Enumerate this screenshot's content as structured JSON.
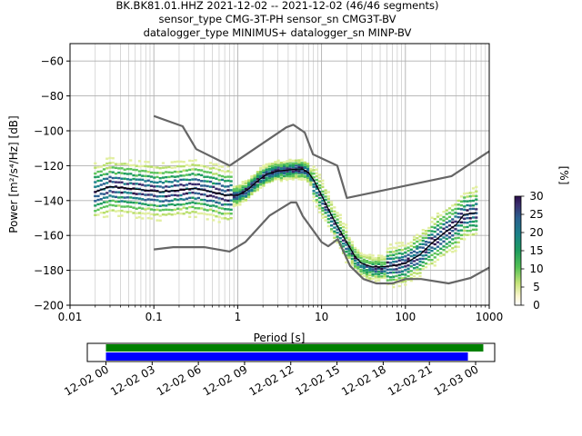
{
  "title_lines": [
    "BK.BK81.01.HHZ   2021-12-02 -- 2021-12-02  (46/46 segments)",
    "sensor_type CMG-3T-PH sensor_sn CMG3T-BV",
    "datalogger_type MINIMUS+ datalogger_sn MINP-BV"
  ],
  "colors": {
    "noise_model": "#666666",
    "mean_line": "#000000",
    "coverage_green": "#008000",
    "coverage_blue": "#0000ff",
    "grid": "#b0b0b0"
  },
  "chart_data": {
    "type": "heatmap",
    "xlabel": "Period [s]",
    "ylabel": "Power [m²/s⁴/Hz] [dB]",
    "xscale": "log",
    "xlim": [
      0.01,
      1000
    ],
    "ylim": [
      -200,
      -50
    ],
    "x_ticks": [
      {
        "value": 0.01,
        "label": "0.01"
      },
      {
        "value": 0.1,
        "label": "0.1"
      },
      {
        "value": 1,
        "label": "1"
      },
      {
        "value": 10,
        "label": "10"
      },
      {
        "value": 100,
        "label": "100"
      },
      {
        "value": 1000,
        "label": "1000"
      }
    ],
    "y_ticks": [
      {
        "value": -60,
        "label": "−60"
      },
      {
        "value": -80,
        "label": "−80"
      },
      {
        "value": -100,
        "label": "−100"
      },
      {
        "value": -120,
        "label": "−120"
      },
      {
        "value": -140,
        "label": "−140"
      },
      {
        "value": -160,
        "label": "−160"
      },
      {
        "value": -180,
        "label": "−180"
      },
      {
        "value": -200,
        "label": "−200"
      }
    ],
    "grid": true,
    "colorbar": {
      "label": "[%]",
      "range": [
        0,
        30
      ],
      "ticks": [
        {
          "value": 0,
          "label": "0"
        },
        {
          "value": 5,
          "label": "5"
        },
        {
          "value": 10,
          "label": "10"
        },
        {
          "value": 15,
          "label": "15"
        },
        {
          "value": 20,
          "label": "20"
        },
        {
          "value": 25,
          "label": "25"
        },
        {
          "value": 30,
          "label": "30"
        }
      ]
    },
    "mean_psd": {
      "period": [
        0.02,
        0.03,
        0.05,
        0.08,
        0.12,
        0.2,
        0.3,
        0.5,
        0.7,
        1.0,
        1.3,
        1.7,
        2.2,
        3.0,
        4.0,
        5.0,
        6.0,
        7.0,
        8.0,
        10.0,
        13.0,
        16.0,
        20.0,
        25.0,
        30.0,
        40.0,
        50.0,
        70.0,
        100.0,
        150.0,
        200.0,
        300.0,
        400.0,
        500.0,
        700.0
      ],
      "power": [
        -135,
        -132,
        -133,
        -134,
        -135,
        -134,
        -133,
        -135,
        -137,
        -137,
        -134,
        -129,
        -125,
        -123,
        -122.5,
        -122,
        -122,
        -124,
        -128,
        -137,
        -148,
        -156,
        -164,
        -172,
        -176,
        -178,
        -178,
        -177.5,
        -176,
        -171,
        -165,
        -158,
        -154,
        -148,
        -147
      ]
    },
    "high_noise_model": {
      "period": [
        0.1,
        0.22,
        0.32,
        0.8,
        3.8,
        4.6,
        6.3,
        7.9,
        15.4,
        20.0,
        354.8,
        10000
      ],
      "power": [
        -91.5,
        -97.4,
        -110.5,
        -120.0,
        -98.0,
        -96.5,
        -101.0,
        -113.5,
        -120.0,
        -138.5,
        -126.0,
        -80.1
      ]
    },
    "low_noise_model": {
      "period": [
        0.1,
        0.17,
        0.4,
        0.8,
        1.24,
        2.4,
        4.3,
        5.0,
        6.0,
        10.0,
        12.0,
        15.6,
        21.9,
        31.6,
        45.0,
        70.0,
        101.0,
        154.0,
        328.0,
        600.0,
        10000
      ],
      "power": [
        -168.0,
        -166.7,
        -166.7,
        -169.2,
        -163.7,
        -148.6,
        -141.1,
        -141.1,
        -149.0,
        -163.8,
        -166.2,
        -162.1,
        -177.5,
        -185.0,
        -187.5,
        -187.5,
        -185.0,
        -185.0,
        -187.5,
        -184.4,
        -151.5
      ]
    },
    "coverage_axis": {
      "tick_labels": [
        "12-02 00",
        "12-02 03",
        "12-02 06",
        "12-02 09",
        "12-02 12",
        "12-02 15",
        "12-02 18",
        "12-02 21",
        "12-03 00"
      ],
      "start_hour": 0,
      "end_hour": 24,
      "green_bar_hours": [
        0,
        24.5
      ],
      "blue_bar_hours": [
        0,
        23.5
      ]
    }
  }
}
